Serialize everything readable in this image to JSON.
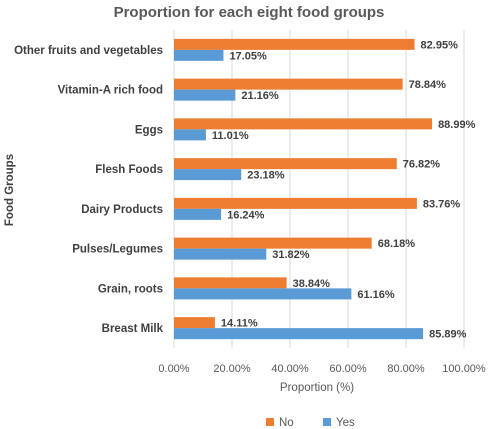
{
  "chart_data": {
    "type": "bar",
    "orientation": "horizontal",
    "title": "Proportion for each eight food groups",
    "xlabel": "Proportion  (%)",
    "ylabel": "Food Groups",
    "xlim": [
      0,
      100
    ],
    "x_ticks": [
      "0.00%",
      "20.00%",
      "40.00%",
      "60.00%",
      "80.00%",
      "100.00%"
    ],
    "grid": true,
    "legend_position": "bottom",
    "categories": [
      "Other fruits and vegetables",
      "Vitamin-A rich food",
      "Eggs",
      "Flesh Foods",
      "Dairy Products",
      "Pulses/Legumes",
      "Grain, roots",
      "Breast Milk"
    ],
    "series": [
      {
        "name": "No",
        "color": "#ED7D31",
        "values": [
          82.95,
          78.84,
          88.99,
          76.82,
          83.76,
          68.18,
          38.84,
          14.11
        ],
        "labels": [
          "82.95%",
          "78.84%",
          "88.99%",
          "76.82%",
          "83.76%",
          "68.18%",
          "38.84%",
          "14.11%"
        ]
      },
      {
        "name": "Yes",
        "color": "#5B9BD5",
        "values": [
          17.05,
          21.16,
          11.01,
          23.18,
          16.24,
          31.82,
          61.16,
          85.89
        ],
        "labels": [
          "17.05%",
          "21.16%",
          "11.01%",
          "23.18%",
          "16.24%",
          "31.82%",
          "61.16%",
          "85.89%"
        ]
      }
    ]
  }
}
